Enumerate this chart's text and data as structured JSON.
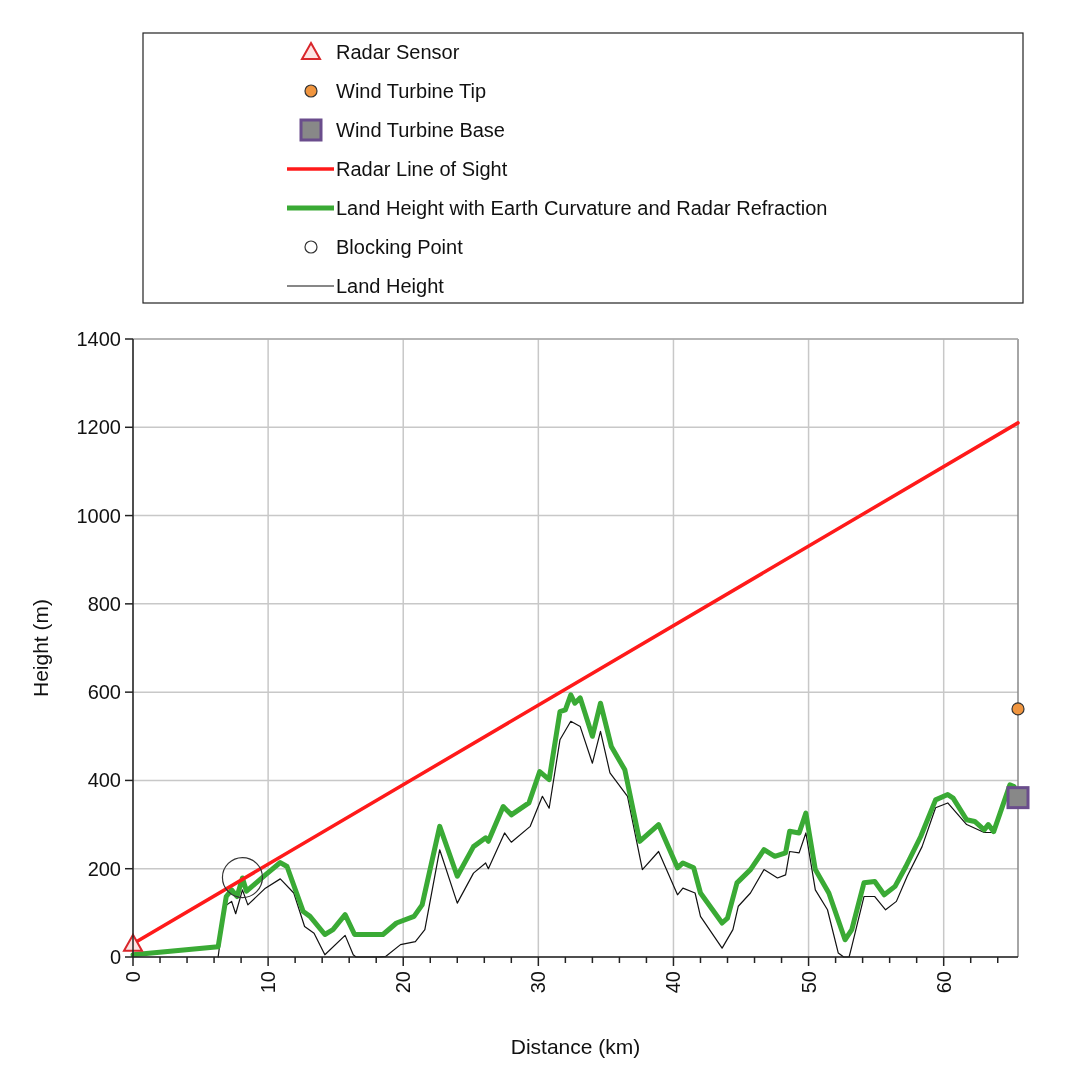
{
  "chart_data": {
    "type": "line",
    "xlabel": "Distance (km)",
    "ylabel": "Height (m)",
    "xlim": [
      0,
      65.5
    ],
    "ylim": [
      0,
      1400
    ],
    "xticks": [
      0,
      {
        "value": 2,
        "label": null
      },
      {
        "value": 4,
        "label": null
      },
      {
        "value": 6,
        "label": null
      },
      {
        "value": 8,
        "label": null
      },
      10,
      {
        "value": 12,
        "label": null
      },
      {
        "value": 14,
        "label": null
      },
      {
        "value": 16,
        "label": null
      },
      {
        "value": 18,
        "label": null
      },
      20,
      {
        "value": 22,
        "label": null
      },
      {
        "value": 24,
        "label": null
      },
      {
        "value": 26,
        "label": null
      },
      {
        "value": 28,
        "label": null
      },
      30,
      {
        "value": 32,
        "label": null
      },
      {
        "value": 34,
        "label": null
      },
      {
        "value": 36,
        "label": null
      },
      {
        "value": 38,
        "label": null
      },
      40,
      {
        "value": 42,
        "label": null
      },
      {
        "value": 44,
        "label": null
      },
      {
        "value": 46,
        "label": null
      },
      {
        "value": 48,
        "label": null
      },
      50,
      {
        "value": 52,
        "label": null
      },
      {
        "value": 54,
        "label": null
      },
      {
        "value": 56,
        "label": null
      },
      {
        "value": 58,
        "label": null
      },
      60,
      {
        "value": 62,
        "label": null
      },
      {
        "value": 64,
        "label": null
      }
    ],
    "yticks": [
      0,
      200,
      400,
      600,
      800,
      1000,
      1200,
      1400
    ],
    "grid": true,
    "legend": "top",
    "series": [
      {
        "name": "Radar Sensor",
        "type": "scatter",
        "marker": "triangle",
        "color": "#d9262b",
        "x": [
          0
        ],
        "values": [
          30
        ]
      },
      {
        "name": "Wind Turbine Tip",
        "type": "scatter",
        "marker": "circle",
        "color": "#f0953f",
        "x": [
          65.5
        ],
        "values": [
          562
        ]
      },
      {
        "name": "Wind Turbine Base",
        "type": "scatter",
        "marker": "square",
        "color": "#6a4d8c",
        "x": [
          65.5
        ],
        "values": [
          361
        ]
      },
      {
        "name": "Radar Line of Sight",
        "color": "#ff1a1a",
        "x": [
          0,
          65.5
        ],
        "values": [
          30,
          1210
        ]
      },
      {
        "name": "Land Height with Earth Curvature and Radar Refraction",
        "color": "#3aaa35",
        "x": [
          0,
          6.3,
          6.9,
          7.3,
          7.7,
          8.1,
          8.4,
          9.8,
          10.9,
          11.4,
          12.6,
          13.1,
          14.2,
          14.8,
          15.7,
          16.4,
          18.5,
          19.5,
          20.8,
          21.4,
          22.7,
          24.0,
          25.2,
          26.1,
          26.3,
          27.4,
          28.0,
          29.3,
          30.1,
          30.8,
          31.6,
          32.0,
          32.4,
          32.7,
          33.1,
          34.0,
          34.6,
          35.4,
          36.4,
          37.5,
          38.9,
          40.3,
          40.7,
          41.5,
          42.0,
          43.6,
          44.0,
          44.7,
          45.7,
          46.7,
          47.5,
          48.3,
          48.6,
          49.3,
          49.8,
          50.5,
          51.5,
          52.7,
          53.2,
          54.1,
          54.9,
          55.6,
          56.4,
          57.2,
          58.3,
          59.4,
          60.3,
          60.7,
          61.7,
          62.3,
          63.0,
          63.3,
          63.7,
          64.9,
          65.2
        ],
        "values": [
          5,
          23,
          137,
          152,
          137,
          179,
          149,
          186,
          214,
          205,
          103,
          92,
          51,
          62,
          96,
          51,
          51,
          77,
          92,
          118,
          296,
          183,
          250,
          270,
          262,
          341,
          322,
          349,
          420,
          402,
          556,
          560,
          594,
          575,
          587,
          500,
          575,
          477,
          424,
          262,
          300,
          202,
          213,
          202,
          145,
          77,
          88,
          168,
          198,
          243,
          228,
          236,
          285,
          281,
          326,
          198,
          145,
          39,
          62,
          168,
          171,
          141,
          160,
          205,
          273,
          356,
          368,
          360,
          311,
          307,
          288,
          300,
          284,
          390,
          386
        ]
      },
      {
        "name": "Blocking Point",
        "type": "scatter",
        "marker": "circle",
        "color": "#333333",
        "x": [
          8.1
        ],
        "values": [
          180
        ]
      },
      {
        "name": "Land Height",
        "color": "#111111",
        "x": [
          6.3,
          6.8,
          7.3,
          7.6,
          8.1,
          8.5,
          9.8,
          10.9,
          11.9,
          12.7,
          13.4,
          14.2,
          15.7,
          16.3,
          16.5,
          18.2,
          18.7,
          19.8,
          20.9,
          21.6,
          22.7,
          24.0,
          25.2,
          26.1,
          26.3,
          27.5,
          28.0,
          29.4,
          30.3,
          30.8,
          31.6,
          32.4,
          33.1,
          34.0,
          34.6,
          35.3,
          36.6,
          37.7,
          38.9,
          40.3,
          40.7,
          41.6,
          42.0,
          43.6,
          44.4,
          44.8,
          45.7,
          46.7,
          47.7,
          48.3,
          48.6,
          49.3,
          49.8,
          50.5,
          51.4,
          52.2,
          52.6,
          53.0,
          53.2,
          54.1,
          54.9,
          55.7,
          56.5,
          57.3,
          58.4,
          59.4,
          60.3,
          61.7,
          63.0,
          63.7,
          64.9,
          65.2
        ],
        "values": [
          0,
          115,
          126,
          98,
          152,
          118,
          156,
          177,
          145,
          69,
          54,
          5,
          49,
          5,
          0,
          0,
          1,
          28,
          35,
          62,
          243,
          122,
          190,
          213,
          200,
          281,
          260,
          296,
          364,
          337,
          492,
          534,
          522,
          439,
          511,
          417,
          364,
          198,
          239,
          141,
          156,
          145,
          92,
          20,
          62,
          115,
          145,
          198,
          179,
          186,
          239,
          236,
          281,
          152,
          107,
          9,
          0,
          0,
          24,
          137,
          137,
          107,
          126,
          183,
          250,
          338,
          349,
          300,
          282,
          282,
          386,
          390
        ]
      }
    ]
  }
}
